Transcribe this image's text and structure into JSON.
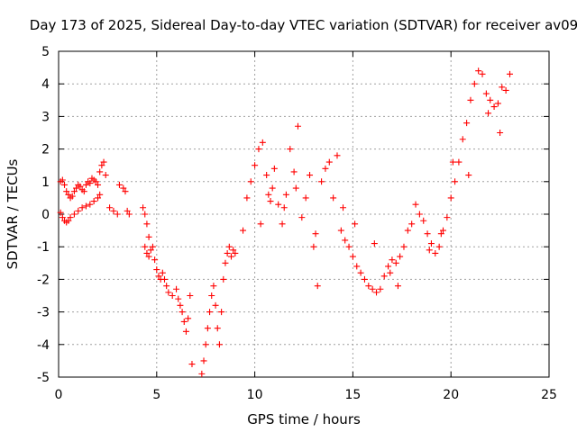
{
  "chart_data": {
    "type": "scatter",
    "title": "Day 173 of 2025, Sidereal Day-to-day VTEC variation (SDTVAR) for receiver av09",
    "xlabel": "GPS time / hours",
    "ylabel": "SDTVAR / TECUs",
    "xlim": [
      0,
      25
    ],
    "ylim": [
      -5,
      5
    ],
    "xticks": [
      0,
      5,
      10,
      15,
      20,
      25
    ],
    "yticks": [
      -5,
      -4,
      -3,
      -2,
      -1,
      0,
      1,
      2,
      3,
      4,
      5
    ],
    "xtick_labels": [
      "0",
      "5",
      "10",
      "15",
      "20",
      "25"
    ],
    "ytick_labels": [
      "-5",
      "-4",
      "-3",
      "-2",
      "-1",
      "0",
      "1",
      "2",
      "3",
      "4",
      "5"
    ],
    "grid": true,
    "marker": "+",
    "marker_color": "#ff0000",
    "series": [
      {
        "name": "av09",
        "x": [
          0.1,
          0.2,
          0.3,
          0.4,
          0.5,
          0.6,
          0.7,
          0.8,
          0.9,
          1.0,
          1.1,
          1.2,
          1.3,
          1.4,
          1.5,
          1.6,
          1.7,
          1.8,
          1.9,
          2.0,
          2.1,
          2.2,
          2.3,
          2.4,
          0.1,
          0.2,
          0.3,
          0.4,
          0.5,
          0.6,
          0.8,
          1.0,
          1.2,
          1.4,
          1.6,
          1.8,
          2.0,
          2.1,
          2.6,
          2.8,
          3.0,
          3.1,
          3.3,
          3.4,
          3.5,
          3.6,
          4.3,
          4.4,
          4.5,
          4.6,
          4.4,
          4.5,
          4.6,
          4.7,
          4.8,
          4.9,
          5.0,
          5.1,
          5.2,
          5.3,
          5.4,
          5.5,
          5.6,
          5.8,
          6.0,
          6.1,
          6.2,
          6.3,
          6.4,
          6.5,
          6.6,
          6.7,
          6.8,
          7.3,
          7.4,
          7.5,
          7.6,
          7.7,
          7.8,
          7.9,
          8.0,
          8.1,
          8.2,
          8.3,
          8.4,
          8.5,
          8.6,
          8.7,
          8.8,
          8.9,
          9.0,
          9.4,
          9.6,
          9.8,
          10.0,
          10.2,
          10.4,
          10.6,
          10.8,
          10.9,
          11.0,
          11.2,
          11.4,
          11.6,
          11.8,
          12.0,
          12.2,
          12.4,
          12.6,
          12.8,
          13.0,
          13.2,
          13.4,
          13.6,
          13.8,
          14.0,
          14.2,
          14.4,
          14.6,
          14.8,
          15.0,
          15.2,
          15.4,
          15.6,
          15.8,
          16.0,
          16.2,
          16.4,
          16.6,
          16.8,
          17.0,
          17.2,
          17.4,
          17.6,
          17.8,
          18.0,
          18.2,
          18.4,
          18.6,
          18.8,
          19.0,
          19.2,
          19.4,
          19.6,
          19.8,
          20.0,
          20.2,
          20.4,
          20.6,
          20.8,
          21.0,
          21.2,
          21.4,
          21.6,
          21.8,
          22.0,
          22.2,
          22.4,
          22.6,
          22.8,
          23.0,
          10.3,
          10.7,
          11.5,
          12.1,
          13.1,
          14.5,
          15.1,
          16.1,
          16.9,
          17.3,
          18.9,
          19.5,
          20.1,
          20.9,
          21.9,
          22.5
        ],
        "y": [
          1.0,
          1.05,
          0.9,
          0.7,
          0.6,
          0.5,
          0.55,
          0.7,
          0.8,
          0.9,
          0.85,
          0.75,
          0.7,
          0.9,
          1.0,
          0.95,
          1.1,
          1.05,
          1.0,
          0.9,
          1.3,
          1.5,
          1.6,
          1.2,
          0.05,
          -0.1,
          -0.2,
          -0.25,
          -0.2,
          -0.1,
          0.0,
          0.1,
          0.2,
          0.25,
          0.3,
          0.4,
          0.5,
          0.6,
          0.2,
          0.1,
          0.0,
          0.9,
          0.8,
          0.7,
          0.1,
          0.0,
          0.2,
          0.0,
          -0.3,
          -0.7,
          -1.0,
          -1.2,
          -1.3,
          -1.1,
          -1.0,
          -1.4,
          -1.7,
          -1.9,
          -2.0,
          -1.8,
          -2.0,
          -2.2,
          -2.4,
          -2.5,
          -2.3,
          -2.6,
          -2.8,
          -3.0,
          -3.3,
          -3.6,
          -3.2,
          -2.5,
          -4.6,
          -4.9,
          -4.5,
          -4.0,
          -3.5,
          -3.0,
          -2.5,
          -2.2,
          -2.8,
          -3.5,
          -4.0,
          -3.0,
          -2.0,
          -1.5,
          -1.2,
          -1.0,
          -1.3,
          -1.1,
          -1.2,
          -0.5,
          0.5,
          1.0,
          1.5,
          2.0,
          2.2,
          1.2,
          0.4,
          0.8,
          1.4,
          0.3,
          -0.3,
          0.6,
          2.0,
          1.3,
          2.7,
          -0.1,
          0.5,
          1.2,
          -1.0,
          -2.2,
          1.0,
          1.4,
          1.6,
          0.5,
          1.8,
          -0.5,
          -0.8,
          -1.0,
          -1.3,
          -1.6,
          -1.8,
          -2.0,
          -2.2,
          -2.3,
          -2.4,
          -2.3,
          -1.9,
          -1.6,
          -1.4,
          -1.5,
          -1.3,
          -1.0,
          -0.5,
          -0.3,
          0.3,
          0.0,
          -0.2,
          -0.6,
          -0.9,
          -1.2,
          -1.0,
          -0.5,
          -0.1,
          0.5,
          1.0,
          1.6,
          2.3,
          2.8,
          3.5,
          4.0,
          4.4,
          4.3,
          3.7,
          3.5,
          3.3,
          3.4,
          3.9,
          3.8,
          4.3,
          -0.3,
          0.6,
          0.2,
          0.8,
          -0.6,
          0.2,
          -0.3,
          -0.9,
          -1.8,
          -2.2,
          -1.1,
          -0.6,
          1.6,
          1.2,
          3.1,
          2.5
        ]
      }
    ]
  }
}
